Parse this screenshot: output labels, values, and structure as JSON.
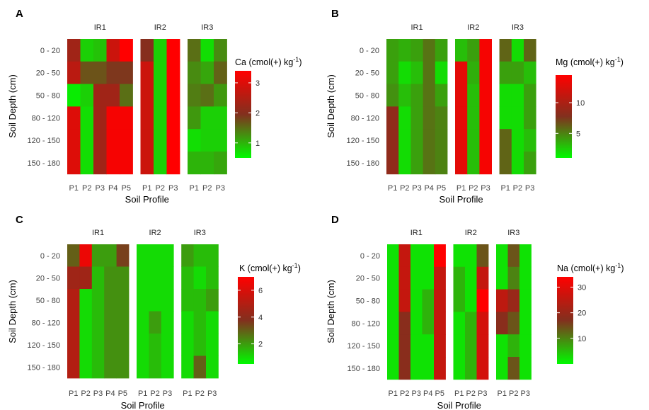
{
  "panels": [
    {
      "letter": "A",
      "ylabel": "Soil Depth (cm)",
      "xlabel": "Soil Profile",
      "legend_title": "Ca  (cmol(+) kg",
      "legend_sup": "-1",
      "legend_close": ")"
    },
    {
      "letter": "B",
      "ylabel": "Soil Depth (cm)",
      "xlabel": "Soil Profile",
      "legend_title": "Mg  (cmol(+) kg",
      "legend_sup": "-1",
      "legend_close": ")"
    },
    {
      "letter": "C",
      "ylabel": "Soil Depth (cm)",
      "xlabel": "Soil Profile",
      "legend_title": "K  (cmol(+) kg",
      "legend_sup": "-1",
      "legend_close": ")"
    },
    {
      "letter": "D",
      "ylabel": "Soil Depth (cm)",
      "xlabel": "Soil Profile",
      "legend_title": "Na   (cmol(+) kg",
      "legend_sup": "-1",
      "legend_close": ")"
    }
  ],
  "chart_data": [
    {
      "type": "heatmap",
      "panel": "A",
      "variable": "Ca",
      "unit": "cmol(+) kg-1",
      "depths": [
        "0 - 20",
        "20 - 50",
        "50 - 80",
        "80 - 120",
        "120 - 150",
        "150 - 180"
      ],
      "groups": [
        {
          "name": "IR1",
          "profiles": [
            "P1",
            "P2",
            "P3",
            "P4",
            "P5"
          ]
        },
        {
          "name": "IR2",
          "profiles": [
            "P1",
            "P2",
            "P3"
          ]
        },
        {
          "name": "IR3",
          "profiles": [
            "P1",
            "P2",
            "P3"
          ]
        }
      ],
      "values": [
        [
          [
            2.3,
            0.8,
            0.9,
            2.8,
            3.4
          ],
          [
            2.0,
            0.8,
            3.4
          ],
          [
            1.5,
            0.7,
            1.3
          ]
        ],
        [
          [
            2.6,
            1.7,
            1.7,
            1.9,
            1.9
          ],
          [
            2.8,
            0.8,
            3.4
          ],
          [
            1.3,
            1.1,
            1.6
          ]
        ],
        [
          [
            0.6,
            0.8,
            2.3,
            2.3,
            1.5
          ],
          [
            2.8,
            0.8,
            3.4
          ],
          [
            1.4,
            1.5,
            1.2
          ]
        ],
        [
          [
            3.0,
            0.7,
            2.3,
            3.3,
            3.3
          ],
          [
            2.8,
            0.8,
            3.4
          ],
          [
            1.2,
            0.8,
            0.8
          ]
        ],
        [
          [
            3.0,
            0.7,
            2.3,
            3.3,
            3.3
          ],
          [
            2.8,
            0.8,
            3.4
          ],
          [
            0.7,
            0.8,
            0.8
          ]
        ],
        [
          [
            3.0,
            0.7,
            2.3,
            3.3,
            3.3
          ],
          [
            2.8,
            0.8,
            3.4
          ],
          [
            1.0,
            1.0,
            1.1
          ]
        ]
      ],
      "colorbar": {
        "min": 0.5,
        "max": 3.4,
        "ticks": [
          1,
          2,
          3
        ]
      }
    },
    {
      "type": "heatmap",
      "panel": "B",
      "variable": "Mg",
      "unit": "cmol(+) kg-1",
      "depths": [
        "0 - 20",
        "20 - 50",
        "50 - 80",
        "80 - 120",
        "120 - 150",
        "150 - 180"
      ],
      "groups": [
        {
          "name": "IR1",
          "profiles": [
            "P1",
            "P2",
            "P3",
            "P4",
            "P5"
          ]
        },
        {
          "name": "IR2",
          "profiles": [
            "P1",
            "P2",
            "P3"
          ]
        },
        {
          "name": "IR3",
          "profiles": [
            "P1",
            "P2",
            "P3"
          ]
        }
      ],
      "values": [
        [
          [
            4.0,
            3.5,
            4.0,
            5.5,
            4.0
          ],
          [
            3.0,
            4.0,
            14.0
          ],
          [
            6.0,
            2.0,
            6.0
          ]
        ],
        [
          [
            4.0,
            2.0,
            3.0,
            5.5,
            2.0
          ],
          [
            13.0,
            3.5,
            14.0
          ],
          [
            4.0,
            4.0,
            3.0
          ]
        ],
        [
          [
            4.5,
            3.0,
            4.0,
            5.5,
            4.0
          ],
          [
            13.0,
            3.0,
            14.0
          ],
          [
            2.0,
            2.0,
            4.0
          ]
        ],
        [
          [
            8.5,
            2.0,
            4.0,
            5.5,
            5.0
          ],
          [
            13.0,
            3.0,
            14.0
          ],
          [
            2.0,
            2.0,
            4.0
          ]
        ],
        [
          [
            8.5,
            2.0,
            4.0,
            5.5,
            5.0
          ],
          [
            13.0,
            3.0,
            14.0
          ],
          [
            6.0,
            2.0,
            3.0
          ]
        ],
        [
          [
            8.5,
            2.0,
            4.0,
            5.5,
            5.0
          ],
          [
            13.0,
            3.0,
            14.0
          ],
          [
            6.0,
            2.0,
            4.0
          ]
        ]
      ],
      "colorbar": {
        "min": 1,
        "max": 14.5,
        "ticks": [
          5,
          10
        ]
      }
    },
    {
      "type": "heatmap",
      "panel": "C",
      "variable": "K",
      "unit": "cmol(+) kg-1",
      "depths": [
        "0 - 20",
        "20 - 50",
        "50 - 80",
        "80 - 120",
        "120 - 150",
        "150 - 180"
      ],
      "groups": [
        {
          "name": "IR1",
          "profiles": [
            "P1",
            "P2",
            "P3",
            "P4",
            "P5"
          ]
        },
        {
          "name": "IR2",
          "profiles": [
            "P1",
            "P2",
            "P3"
          ]
        },
        {
          "name": "IR3",
          "profiles": [
            "P1",
            "P2",
            "P3"
          ]
        }
      ],
      "values": [
        [
          [
            3.0,
            6.5,
            2.0,
            2.0,
            3.5
          ],
          [
            1.0,
            1.0,
            1.0
          ],
          [
            2.0,
            1.5,
            1.5
          ]
        ],
        [
          [
            4.5,
            4.5,
            1.5,
            2.2,
            2.2
          ],
          [
            1.0,
            1.0,
            1.0
          ],
          [
            1.5,
            1.0,
            1.5
          ]
        ],
        [
          [
            5.0,
            1.0,
            1.5,
            2.2,
            2.2
          ],
          [
            1.0,
            1.0,
            1.0
          ],
          [
            1.5,
            1.5,
            2.0
          ]
        ],
        [
          [
            5.0,
            1.0,
            1.5,
            2.2,
            2.2
          ],
          [
            1.0,
            2.0,
            1.0
          ],
          [
            1.0,
            1.5,
            1.0
          ]
        ],
        [
          [
            5.0,
            1.0,
            1.5,
            2.2,
            2.2
          ],
          [
            1.0,
            1.5,
            1.0
          ],
          [
            1.0,
            1.5,
            1.0
          ]
        ],
        [
          [
            5.0,
            1.0,
            1.5,
            2.2,
            2.2
          ],
          [
            1.0,
            1.5,
            1.0
          ],
          [
            1.0,
            3.0,
            1.0
          ]
        ]
      ],
      "colorbar": {
        "min": 0.5,
        "max": 7,
        "ticks": [
          2,
          4,
          6
        ]
      }
    },
    {
      "type": "heatmap",
      "panel": "D",
      "variable": "Na",
      "unit": "cmol(+) kg-1",
      "depths": [
        "0 - 20",
        "20 - 50",
        "50 - 80",
        "80 - 120",
        "120 - 150",
        "150 - 180"
      ],
      "groups": [
        {
          "name": "IR1",
          "profiles": [
            "P1",
            "P2",
            "P3",
            "P4",
            "P5"
          ]
        },
        {
          "name": "IR2",
          "profiles": [
            "P1",
            "P2",
            "P3"
          ]
        },
        {
          "name": "IR3",
          "profiles": [
            "P1",
            "P2",
            "P3"
          ]
        }
      ],
      "values": [
        [
          [
            2,
            26,
            2,
            2,
            34
          ],
          [
            2,
            2,
            14
          ],
          [
            2,
            14,
            2
          ]
        ],
        [
          [
            2,
            26,
            2,
            2,
            26
          ],
          [
            6,
            2,
            26
          ],
          [
            2,
            10,
            2
          ]
        ],
        [
          [
            2,
            26,
            2,
            6,
            26
          ],
          [
            6,
            2,
            34
          ],
          [
            25,
            20,
            2
          ]
        ],
        [
          [
            2,
            18,
            2,
            6,
            26
          ],
          [
            2,
            6,
            28
          ],
          [
            18,
            14,
            2
          ]
        ],
        [
          [
            2,
            18,
            2,
            2,
            26
          ],
          [
            2,
            6,
            28
          ],
          [
            2,
            6,
            2
          ]
        ],
        [
          [
            2,
            18,
            2,
            2,
            26
          ],
          [
            2,
            6,
            28
          ],
          [
            2,
            14,
            2
          ]
        ]
      ],
      "colorbar": {
        "min": 0,
        "max": 34,
        "ticks": [
          10,
          20,
          30
        ]
      }
    }
  ]
}
